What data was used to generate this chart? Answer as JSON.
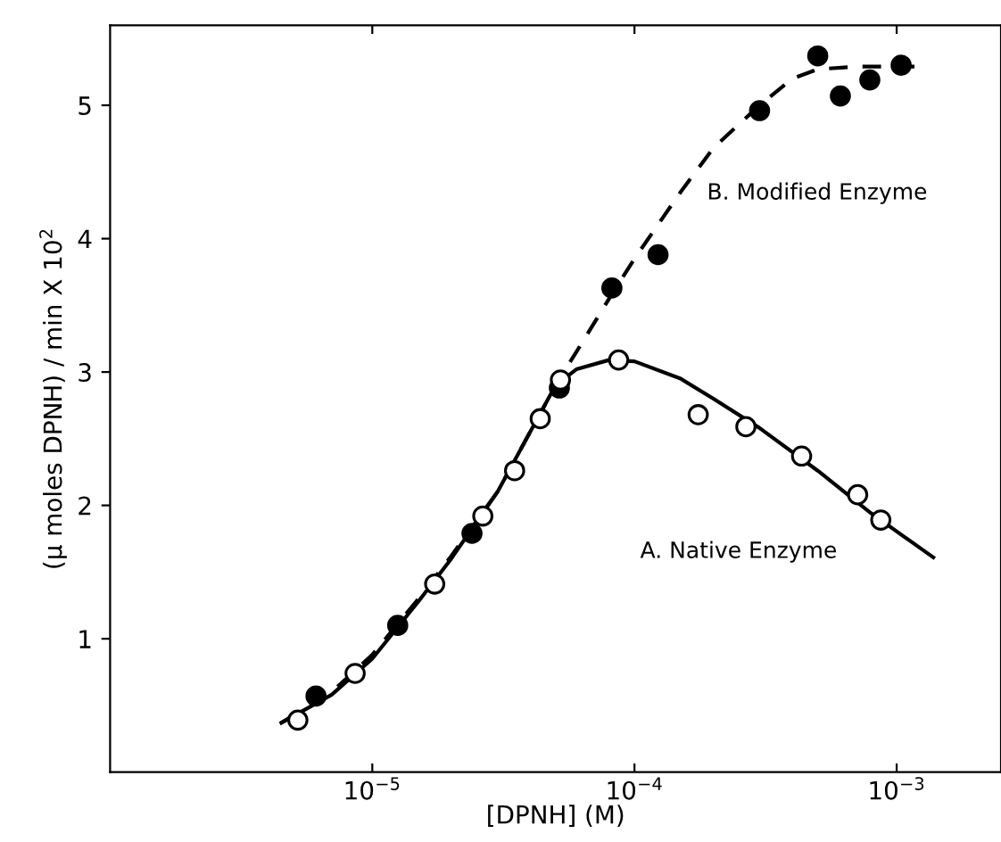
{
  "chart_data": {
    "type": "scatter",
    "xlabel": "[DPNH] (M)",
    "ylabel": "(µ moles DPNH) / min X 10$^{2}$",
    "log": "x",
    "xlim": [
      1e-06,
      0.0025
    ],
    "xticks": [
      {
        "value": 1e-05,
        "label": "10$^{−5}$"
      },
      {
        "value": 0.0001,
        "label": "10$^{−4}$"
      },
      {
        "value": 0.001,
        "label": "10$^{−3}$"
      }
    ],
    "ylim": [
      0,
      5.6
    ],
    "yticks": [
      1,
      2,
      3,
      4,
      5
    ],
    "grid": false,
    "legend": false,
    "series": [
      {
        "type": "line",
        "color": "#000000",
        "line_style": "solid",
        "marker": "none",
        "x": [
          4.5e-06,
          7e-06,
          1e-05,
          1.5e-05,
          2e-05,
          3e-05,
          4e-05,
          5e-05,
          6e-05,
          8e-05,
          0.0001,
          0.00015,
          0.0002,
          0.0003,
          0.0005,
          0.0008,
          0.00138
        ],
        "values": [
          0.37,
          0.58,
          0.85,
          1.28,
          1.6,
          2.1,
          2.55,
          2.9,
          3.02,
          3.09,
          3.08,
          2.95,
          2.8,
          2.58,
          2.26,
          1.94,
          1.61
        ]
      },
      {
        "type": "line",
        "color": "#000000",
        "line_style": "dashed",
        "marker": "none",
        "x": [
          4.5e-06,
          7e-06,
          1e-05,
          1.5e-05,
          2e-05,
          3e-05,
          4e-05,
          5e-05,
          6e-05,
          8e-05,
          0.0001,
          0.00015,
          0.0002,
          0.0003,
          0.0004,
          0.0005,
          0.0007,
          0.00121
        ],
        "values": [
          0.37,
          0.6,
          0.88,
          1.3,
          1.62,
          2.1,
          2.55,
          2.9,
          3.15,
          3.55,
          3.85,
          4.35,
          4.68,
          5.0,
          5.2,
          5.27,
          5.29,
          5.29
        ]
      },
      {
        "color": "#ffffff",
        "marker": "circle",
        "x": [
          5.2e-06,
          8.6e-06,
          1.73e-05,
          2.64e-05,
          3.49e-05,
          4.37e-05,
          5.22e-05,
          8.7e-05,
          0.000175,
          0.000266,
          0.000434,
          0.00071,
          0.00087
        ],
        "values": [
          0.39,
          0.74,
          1.41,
          1.92,
          2.26,
          2.65,
          2.94,
          3.09,
          2.68,
          2.59,
          2.37,
          2.08,
          1.89
        ]
      },
      {
        "color": "#000000",
        "marker": "circle",
        "x": [
          6.1e-06,
          1.25e-05,
          2.4e-05,
          5.17e-05,
          8.2e-05,
          0.000123,
          0.0003,
          0.0005,
          0.00061,
          0.00079,
          0.00104
        ],
        "values": [
          0.57,
          1.1,
          1.79,
          2.88,
          3.63,
          3.88,
          4.96,
          5.37,
          5.07,
          5.19,
          5.3
        ]
      }
    ],
    "annotations": [
      "B. Modified Enzyme",
      "A. Native Enzyme"
    ]
  }
}
